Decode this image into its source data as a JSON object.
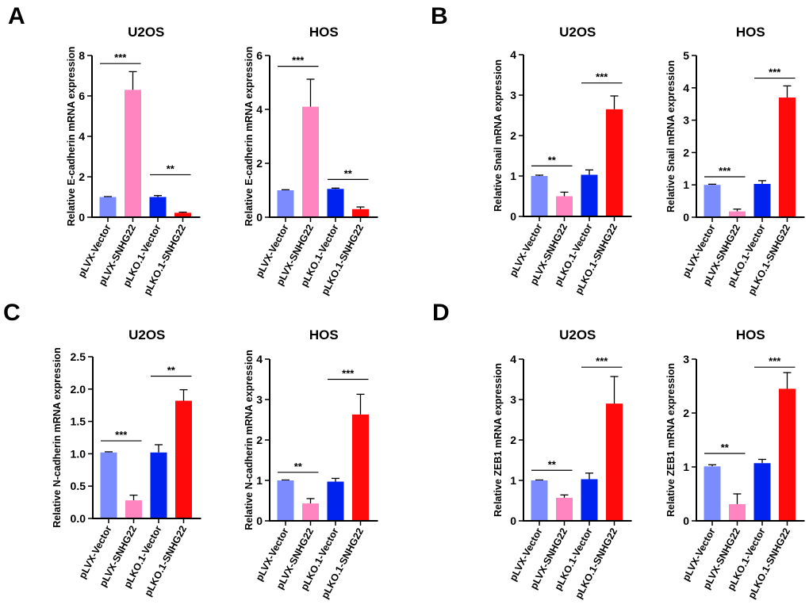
{
  "panels": [
    "A",
    "B",
    "C",
    "D"
  ],
  "colors": [
    "#7b8cff",
    "#ff85c0",
    "#0022ee",
    "#ff0a0a"
  ],
  "chart_data": [
    {
      "panel": "A",
      "type": "bar",
      "title": "U2OS",
      "ylabel": "Relative E-cadherin mRNA expression",
      "categories": [
        "pLVX-Vector",
        "pLVX-SNHG22",
        "pLKO.1-Vector",
        "pLKO.1-SNHG22"
      ],
      "values": [
        1.0,
        6.3,
        1.0,
        0.22
      ],
      "errors": [
        0.02,
        0.9,
        0.07,
        0.03
      ],
      "ylim": [
        0,
        8
      ],
      "yticks": [
        "0",
        "2",
        "4",
        "6",
        "8"
      ],
      "significance": [
        {
          "from": 0,
          "to": 1,
          "label": "***",
          "y": 7.6
        },
        {
          "from": 2,
          "to": 3,
          "label": "**",
          "y": 2.1
        }
      ]
    },
    {
      "panel": "A",
      "type": "bar",
      "title": "HOS",
      "ylabel": "Relative E-cadherin mRNA expression",
      "categories": [
        "pLVX-Vector",
        "pLVX-SNHG22",
        "pLKO.1-Vector",
        "pLKO.1-SNHG22"
      ],
      "values": [
        1.0,
        4.1,
        1.05,
        0.3
      ],
      "errors": [
        0.02,
        1.02,
        0.03,
        0.08
      ],
      "ylim": [
        0,
        6
      ],
      "yticks": [
        "0",
        "2",
        "4",
        "6"
      ],
      "significance": [
        {
          "from": 0,
          "to": 1,
          "label": "***",
          "y": 5.6
        },
        {
          "from": 2,
          "to": 3,
          "label": "**",
          "y": 1.4
        }
      ]
    },
    {
      "panel": "B",
      "type": "bar",
      "title": "U2OS",
      "ylabel": "Relative Snail mRNA expression",
      "categories": [
        "pLVX-Vector",
        "pLVX-SNHG22",
        "pLKO.1-Vector",
        "pLKO.1-SNHG22"
      ],
      "values": [
        1.0,
        0.5,
        1.03,
        2.65
      ],
      "errors": [
        0.02,
        0.1,
        0.12,
        0.33
      ],
      "ylim": [
        0,
        4
      ],
      "yticks": [
        "0",
        "1",
        "2",
        "3",
        "4"
      ],
      "significance": [
        {
          "from": 0,
          "to": 1,
          "label": "**",
          "y": 1.25
        },
        {
          "from": 2,
          "to": 3,
          "label": "***",
          "y": 3.3
        }
      ]
    },
    {
      "panel": "B",
      "type": "bar",
      "title": "HOS",
      "ylabel": "Relative Snail mRNA expression",
      "categories": [
        "pLVX-Vector",
        "pLVX-SNHG22",
        "pLKO.1-Vector",
        "pLKO.1-SNHG22"
      ],
      "values": [
        1.0,
        0.18,
        1.03,
        3.7
      ],
      "errors": [
        0.02,
        0.07,
        0.1,
        0.36
      ],
      "ylim": [
        0,
        5
      ],
      "yticks": [
        "0",
        "1",
        "2",
        "3",
        "4",
        "5"
      ],
      "significance": [
        {
          "from": 0,
          "to": 1,
          "label": "***",
          "y": 1.25
        },
        {
          "from": 2,
          "to": 3,
          "label": "***",
          "y": 4.3
        }
      ]
    },
    {
      "panel": "C",
      "type": "bar",
      "title": "U2OS",
      "ylabel": "Relative N-cadherin mRNA expression",
      "categories": [
        "pLVX-Vector",
        "pLVX-SNHG22",
        "pLKO.1-Vector",
        "pLKO.1-SNHG22"
      ],
      "values": [
        1.02,
        0.28,
        1.02,
        1.82
      ],
      "errors": [
        0.01,
        0.08,
        0.12,
        0.17
      ],
      "ylim": [
        0,
        2.5
      ],
      "yticks": [
        "0.0",
        "0.5",
        "1.0",
        "1.5",
        "2.0",
        "2.5"
      ],
      "significance": [
        {
          "from": 0,
          "to": 1,
          "label": "***",
          "y": 1.2
        },
        {
          "from": 2,
          "to": 3,
          "label": "**",
          "y": 2.2
        }
      ]
    },
    {
      "panel": "C",
      "type": "bar",
      "title": "HOS",
      "ylabel": "Relative N-cadherin mRNA expression",
      "categories": [
        "pLVX-Vector",
        "pLVX-SNHG22",
        "pLKO.1-Vector",
        "pLKO.1-SNHG22"
      ],
      "values": [
        1.0,
        0.43,
        0.97,
        2.63
      ],
      "errors": [
        0.01,
        0.12,
        0.08,
        0.5
      ],
      "ylim": [
        0,
        4
      ],
      "yticks": [
        "0",
        "1",
        "2",
        "3",
        "4"
      ],
      "significance": [
        {
          "from": 0,
          "to": 1,
          "label": "**",
          "y": 1.2
        },
        {
          "from": 2,
          "to": 3,
          "label": "***",
          "y": 3.5
        }
      ]
    },
    {
      "panel": "D",
      "type": "bar",
      "title": "U2OS",
      "ylabel": "Relative ZEB1 mRNA expression",
      "categories": [
        "pLVX-Vector",
        "pLVX-SNHG22",
        "pLKO.1-Vector",
        "pLKO.1-SNHG22"
      ],
      "values": [
        1.0,
        0.57,
        1.03,
        2.9
      ],
      "errors": [
        0.01,
        0.07,
        0.15,
        0.67
      ],
      "ylim": [
        0,
        4
      ],
      "yticks": [
        "0",
        "1",
        "2",
        "3",
        "4"
      ],
      "significance": [
        {
          "from": 0,
          "to": 1,
          "label": "**",
          "y": 1.25
        },
        {
          "from": 2,
          "to": 3,
          "label": "***",
          "y": 3.8
        }
      ]
    },
    {
      "panel": "D",
      "type": "bar",
      "title": "HOS",
      "ylabel": "Relative ZEB1 mRNA expression",
      "categories": [
        "pLVX-Vector",
        "pLVX-SNHG22",
        "pLKO.1-Vector",
        "pLKO.1-SNHG22"
      ],
      "values": [
        1.01,
        0.31,
        1.07,
        2.45
      ],
      "errors": [
        0.03,
        0.19,
        0.07,
        0.3
      ],
      "ylim": [
        0,
        3
      ],
      "yticks": [
        "0",
        "1",
        "2",
        "3"
      ],
      "significance": [
        {
          "from": 0,
          "to": 1,
          "label": "**",
          "y": 1.25
        },
        {
          "from": 2,
          "to": 3,
          "label": "***",
          "y": 2.85
        }
      ]
    }
  ]
}
